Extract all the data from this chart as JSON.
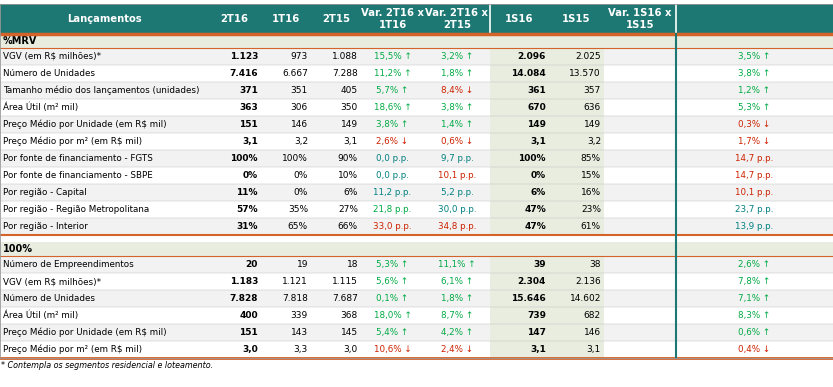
{
  "header_row": [
    "Lançamentos",
    "2T16",
    "1T16",
    "2T15",
    "Var. 2T16 x\n1T16",
    "Var. 2T16 x\n2T15",
    "1S16",
    "1S15",
    "Var. 1S16 x\n1S15"
  ],
  "section1_label": "%MRV",
  "section2_label": "100%",
  "rows_mrv": [
    [
      "VGV (em R$ milhões)*",
      "1.123",
      "973",
      "1.088",
      "15,5% ↑",
      "3,2% ↑",
      "2.096",
      "2.025",
      "3,5% ↑"
    ],
    [
      "Número de Unidades",
      "7.416",
      "6.667",
      "7.288",
      "11,2% ↑",
      "1,8% ↑",
      "14.084",
      "13.570",
      "3,8% ↑"
    ],
    [
      "Tamanho médio dos lançamentos (unidades)",
      "371",
      "351",
      "405",
      "5,7% ↑",
      "8,4% ↓",
      "361",
      "357",
      "1,2% ↑"
    ],
    [
      "Área Útil (m² mil)",
      "363",
      "306",
      "350",
      "18,6% ↑",
      "3,8% ↑",
      "670",
      "636",
      "5,3% ↑"
    ],
    [
      "Preço Médio por Unidade (em R$ mil)",
      "151",
      "146",
      "149",
      "3,8% ↑",
      "1,4% ↑",
      "149",
      "149",
      "0,3% ↓"
    ],
    [
      "Preço Médio por m² (em R$ mil)",
      "3,1",
      "3,2",
      "3,1",
      "2,6% ↓",
      "0,6% ↓",
      "3,1",
      "3,2",
      "1,7% ↓"
    ],
    [
      "Por fonte de financiamento - FGTS",
      "100%",
      "100%",
      "90%",
      "0,0 p.p.",
      "9,7 p.p.",
      "100%",
      "85%",
      "14,7 p.p."
    ],
    [
      "Por fonte de financiamento - SBPE",
      "0%",
      "0%",
      "10%",
      "0,0 p.p.",
      "10,1 p.p.",
      "0%",
      "15%",
      "14,7 p.p."
    ],
    [
      "Por região - Capital",
      "11%",
      "0%",
      "6%",
      "11,2 p.p.",
      "5,2 p.p.",
      "6%",
      "16%",
      "10,1 p.p."
    ],
    [
      "Por região - Região Metropolitana",
      "57%",
      "35%",
      "27%",
      "21,8 p.p.",
      "30,0 p.p.",
      "47%",
      "23%",
      "23,7 p.p."
    ],
    [
      "Por região - Interior",
      "31%",
      "65%",
      "66%",
      "33,0 p.p.",
      "34,8 p.p.",
      "47%",
      "61%",
      "13,9 p.p."
    ]
  ],
  "rows_100": [
    [
      "Número de Empreendimentos",
      "20",
      "19",
      "18",
      "5,3% ↑",
      "11,1% ↑",
      "39",
      "38",
      "2,6% ↑"
    ],
    [
      "VGV (em R$ milhões)*",
      "1.183",
      "1.121",
      "1.115",
      "5,6% ↑",
      "6,1% ↑",
      "2.304",
      "2.136",
      "7,8% ↑"
    ],
    [
      "Número de Unidades",
      "7.828",
      "7.818",
      "7.687",
      "0,1% ↑",
      "1,8% ↑",
      "15.646",
      "14.602",
      "7,1% ↑"
    ],
    [
      "Área Útil (m² mil)",
      "400",
      "339",
      "368",
      "18,0% ↑",
      "8,7% ↑",
      "739",
      "682",
      "8,3% ↑"
    ],
    [
      "Preço Médio por Unidade (em R$ mil)",
      "151",
      "143",
      "145",
      "5,4% ↑",
      "4,2% ↑",
      "147",
      "146",
      "0,6% ↑"
    ],
    [
      "Preço Médio por m² (em R$ mil)",
      "3,0",
      "3,3",
      "3,0",
      "10,6% ↓",
      "2,4% ↓",
      "3,1",
      "3,1",
      "0,4% ↓"
    ]
  ],
  "col_colors_mrv": {
    "var2t16_1t16": [
      "#00aa44",
      "#00aa44",
      "#00aa44",
      "#00aa44",
      "#00aa44",
      "#cc2200",
      "#008080",
      "#008080",
      "#008080",
      "#00aa44",
      "#cc2200"
    ],
    "var2t16_2t15": [
      "#00aa44",
      "#00aa44",
      "#cc2200",
      "#00aa44",
      "#00aa44",
      "#cc2200",
      "#008080",
      "#cc2200",
      "#008080",
      "#008080",
      "#cc2200"
    ],
    "var1s16_1s15": [
      "#00aa44",
      "#00aa44",
      "#00aa44",
      "#00aa44",
      "#cc2200",
      "#cc2200",
      "#cc2200",
      "#cc2200",
      "#cc2200",
      "#008080",
      "#008080"
    ]
  },
  "col_colors_100": {
    "var2t16_1t16": [
      "#00aa44",
      "#00aa44",
      "#00aa44",
      "#00aa44",
      "#00aa44",
      "#cc2200"
    ],
    "var2t16_2t15": [
      "#00aa44",
      "#00aa44",
      "#00aa44",
      "#00aa44",
      "#00aa44",
      "#cc2200"
    ],
    "var1s16_1s15": [
      "#00aa44",
      "#00aa44",
      "#00aa44",
      "#00aa44",
      "#00aa44",
      "#cc2200"
    ]
  },
  "header_bg": "#1d7874",
  "header_text": "#ffffff",
  "section_bg": "#e8ede0",
  "row_bg_white": "#ffffff",
  "row_bg_light": "#f2f2f2",
  "bold_col_bg": "#e8ede0",
  "separator_orange": "#d4632a",
  "divider_teal": "#1d7874",
  "footnote": "* Contempla os segmentos residencial e loteamento."
}
